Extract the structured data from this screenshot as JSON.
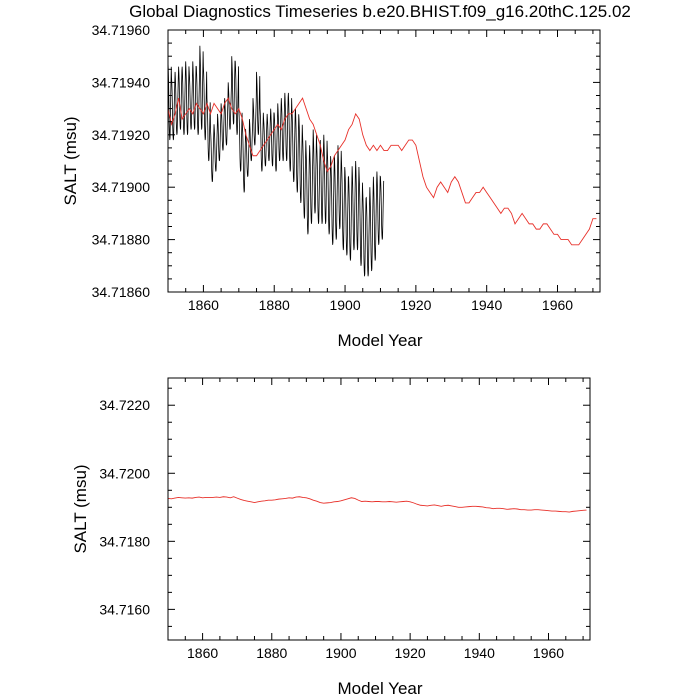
{
  "title": "Global Diagnostics Timeseries b.e20.BHIST.f09_g16.20thC.125.02",
  "chart_data": [
    {
      "type": "line",
      "xlabel": "Model Year",
      "ylabel": "SALT (msu)",
      "xlim": [
        1850,
        1972
      ],
      "ylim": [
        34.7186,
        34.7196
      ],
      "xticks": [
        1860,
        1880,
        1900,
        1920,
        1940,
        1960
      ],
      "yticks": [
        34.7186,
        34.7188,
        34.719,
        34.7192,
        34.7194,
        34.7196
      ],
      "ytick_labels": [
        "34.71860",
        "34.71880",
        "34.71900",
        "34.71920",
        "34.71940",
        "34.71960"
      ],
      "grid": false,
      "series": [
        {
          "name": "monthly",
          "color": "#000000",
          "annual_cycle": true,
          "values": [
            34.71948,
            34.71918,
            34.71942,
            34.71918,
            34.71944,
            34.7192,
            34.71946,
            34.71922,
            34.71946,
            34.7192,
            34.71948,
            34.7192,
            34.71944,
            34.71922,
            34.71948,
            34.71922,
            34.71946,
            34.7192,
            34.71954,
            34.71922,
            34.71946,
            34.71918,
            34.71934,
            34.7191,
            34.71922,
            34.71902,
            34.71924,
            34.71906,
            34.71928,
            34.7191,
            34.71932,
            34.71914,
            34.71934,
            34.71916,
            34.7194,
            34.71922,
            34.7195,
            34.71924,
            34.71948,
            34.7192,
            34.7193,
            34.71906,
            34.71924,
            34.71898,
            34.7192,
            34.71904,
            34.71926,
            34.7191,
            34.71934,
            34.71916,
            34.71944,
            34.7192,
            34.7193,
            34.71906,
            34.71926,
            34.71908,
            34.71928,
            34.7191,
            34.7193,
            34.71908,
            34.71928,
            34.71906,
            34.71932,
            34.7191,
            34.71934,
            34.7191,
            34.71936,
            34.7191,
            34.71936,
            34.71906,
            34.7193,
            34.71902,
            34.7193,
            34.71898,
            34.71926,
            34.71894,
            34.7192,
            34.71888,
            34.71914,
            34.71882,
            34.71916,
            34.71886,
            34.71922,
            34.7189,
            34.71916,
            34.71886,
            34.71918,
            34.71886,
            34.7192,
            34.71886,
            34.71914,
            34.71882,
            34.7191,
            34.71878,
            34.71912,
            34.7188,
            34.71916,
            34.71884,
            34.7191,
            34.71876,
            34.71906,
            34.71874,
            34.71904,
            34.71872,
            34.71908,
            34.71876,
            34.7191,
            34.71876,
            34.71904,
            34.7187,
            34.71898,
            34.71866,
            34.71896,
            34.71866,
            34.719,
            34.71868,
            34.71904,
            34.71872,
            34.71906,
            34.71878,
            34.71904,
            34.7188
          ],
          "x_start": 1850,
          "x_step": 1
        },
        {
          "name": "annual mean",
          "color": "#e8312a",
          "x_start": 1850,
          "x_step": 1,
          "values": [
            34.7193,
            34.71924,
            34.71928,
            34.71934,
            34.71926,
            34.71928,
            34.7193,
            34.71928,
            34.71932,
            34.7193,
            34.71928,
            34.71932,
            34.71928,
            34.71932,
            34.7193,
            34.71928,
            34.71932,
            34.71934,
            34.7193,
            34.71928,
            34.7193,
            34.71926,
            34.7192,
            34.71916,
            34.71912,
            34.71912,
            34.71914,
            34.71916,
            34.71918,
            34.7192,
            34.71922,
            34.71924,
            34.71922,
            34.71926,
            34.71928,
            34.71928,
            34.7193,
            34.71932,
            34.71934,
            34.7193,
            34.71926,
            34.71924,
            34.7192,
            34.71916,
            34.7191,
            34.71906,
            34.71908,
            34.71912,
            34.71914,
            34.71916,
            34.71918,
            34.71922,
            34.71924,
            34.71928,
            34.71926,
            34.7192,
            34.71916,
            34.71914,
            34.71916,
            34.71914,
            34.71916,
            34.71914,
            34.71914,
            34.71916,
            34.71916,
            34.71916,
            34.71914,
            34.71916,
            34.71918,
            34.71918,
            34.71916,
            34.7191,
            34.71904,
            34.719,
            34.71898,
            34.71896,
            34.719,
            34.71902,
            34.719,
            34.71898,
            34.71902,
            34.71904,
            34.71902,
            34.71898,
            34.71894,
            34.71894,
            34.71896,
            34.71898,
            34.71898,
            34.719,
            34.71898,
            34.71896,
            34.71894,
            34.71892,
            34.7189,
            34.71892,
            34.71892,
            34.7189,
            34.71886,
            34.71888,
            34.7189,
            34.71888,
            34.71886,
            34.71886,
            34.71884,
            34.71884,
            34.71886,
            34.71886,
            34.71884,
            34.71882,
            34.71882,
            34.7188,
            34.7188,
            34.7188,
            34.71878,
            34.71878,
            34.71878,
            34.7188,
            34.71882,
            34.71884,
            34.71888,
            34.71888
          ]
        }
      ]
    },
    {
      "type": "line",
      "xlabel": "Model Year",
      "ylabel": "SALT (msu)",
      "xlim": [
        1850,
        1972
      ],
      "ylim": [
        34.7215,
        34.7223
      ],
      "xticks": [
        1860,
        1880,
        1900,
        1920,
        1940,
        1960
      ],
      "yticks": [
        34.716,
        34.718,
        34.72,
        34.722
      ],
      "ytick_labels": [
        "34.7160",
        "34.7180",
        "34.7200",
        "34.7220"
      ],
      "ylim_full": [
        34.7151,
        34.7228
      ],
      "grid": false,
      "series": [
        {
          "name": "annual mean",
          "color": "#e8312a",
          "x_start": 1850,
          "x_step": 1,
          "values": [
            34.71926,
            34.71925,
            34.71927,
            34.71929,
            34.71928,
            34.71927,
            34.71928,
            34.71927,
            34.71929,
            34.7193,
            34.71928,
            34.71929,
            34.71929,
            34.71929,
            34.7193,
            34.71929,
            34.71931,
            34.7193,
            34.71928,
            34.71931,
            34.71927,
            34.71923,
            34.7192,
            34.71918,
            34.71916,
            34.71914,
            34.71916,
            34.71918,
            34.71919,
            34.71921,
            34.71921,
            34.71922,
            34.71924,
            34.71925,
            34.71926,
            34.71928,
            34.71927,
            34.7193,
            34.71931,
            34.71929,
            34.71928,
            34.71925,
            34.71921,
            34.71918,
            34.71914,
            34.71912,
            34.71913,
            34.71914,
            34.71916,
            34.71917,
            34.71919,
            34.71922,
            34.71925,
            34.71928,
            34.71926,
            34.71921,
            34.71917,
            34.71918,
            34.71917,
            34.71916,
            34.71917,
            34.71917,
            34.71916,
            34.71916,
            34.71917,
            34.71916,
            34.71915,
            34.71916,
            34.71917,
            34.71918,
            34.71916,
            34.71913,
            34.71909,
            34.71906,
            34.71905,
            34.71904,
            34.71906,
            34.71907,
            34.71905,
            34.71903,
            34.71905,
            34.71906,
            34.71904,
            34.71902,
            34.719,
            34.719,
            34.71901,
            34.71902,
            34.71903,
            34.71903,
            34.71902,
            34.71901,
            34.71899,
            34.71898,
            34.71896,
            34.71897,
            34.71897,
            34.71896,
            34.71894,
            34.71895,
            34.71896,
            34.71895,
            34.71893,
            34.71893,
            34.71892,
            34.71892,
            34.71893,
            34.71893,
            34.71892,
            34.71891,
            34.7189,
            34.71889,
            34.71889,
            34.71888,
            34.71887,
            34.71887,
            34.71886,
            34.71888,
            34.71889,
            34.7189,
            34.71891,
            34.71892
          ]
        }
      ]
    }
  ]
}
